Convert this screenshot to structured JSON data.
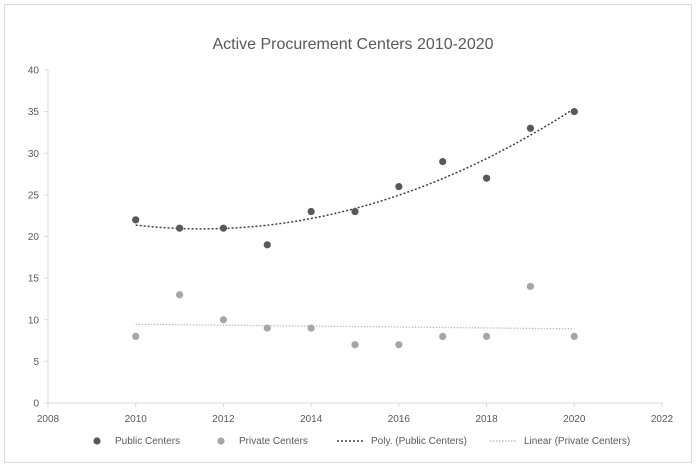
{
  "chart_data": {
    "type": "scatter",
    "title": "Active Procurement Centers 2010-2020",
    "xlabel": "",
    "ylabel": "",
    "xlim": [
      2008,
      2022
    ],
    "ylim": [
      0,
      40
    ],
    "xticks": [
      2008,
      2010,
      2012,
      2014,
      2016,
      2018,
      2020,
      2022
    ],
    "yticks": [
      0,
      5,
      10,
      15,
      20,
      25,
      30,
      35,
      40
    ],
    "grid": false,
    "legend_position": "bottom",
    "series": [
      {
        "name": "Public Centers",
        "color": "#595959",
        "x": [
          2010,
          2011,
          2012,
          2013,
          2014,
          2015,
          2016,
          2017,
          2018,
          2019,
          2020
        ],
        "y": [
          22,
          21,
          21,
          19,
          23,
          23,
          26,
          29,
          27,
          33,
          35
        ]
      },
      {
        "name": "Private Centers",
        "color": "#a6a6a6",
        "x": [
          2010,
          2011,
          2012,
          2013,
          2014,
          2015,
          2016,
          2017,
          2018,
          2019,
          2020
        ],
        "y": [
          8,
          13,
          10,
          9,
          9,
          7,
          7,
          8,
          8,
          14,
          8
        ]
      }
    ],
    "trendlines": [
      {
        "name": "Poly. (Public Centers)",
        "kind": "polynomial",
        "order": 2,
        "color": "#404040",
        "of_series": "Public Centers"
      },
      {
        "name": "Linear (Private Centers)",
        "kind": "linear",
        "color": "#bfbfbf",
        "of_series": "Private Centers"
      }
    ]
  }
}
